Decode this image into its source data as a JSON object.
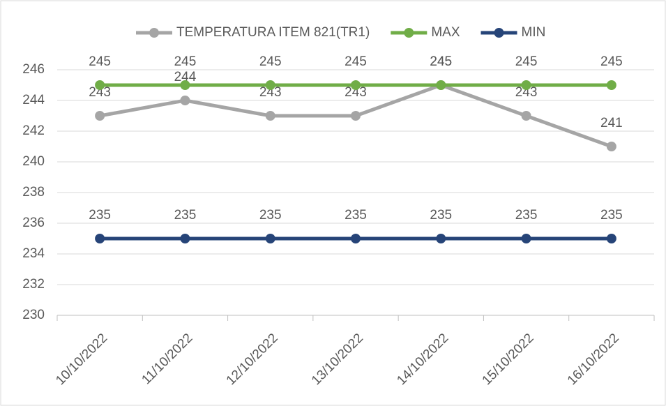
{
  "chart_data": {
    "type": "line",
    "categories": [
      "10/10/2022",
      "11/10/2022",
      "12/10/2022",
      "13/10/2022",
      "14/10/2022",
      "15/10/2022",
      "16/10/2022"
    ],
    "series": [
      {
        "name": "TEMPERATURA ITEM 821(TR1)",
        "color": "#a5a5a5",
        "values": [
          243,
          244,
          243,
          243,
          245,
          243,
          241
        ]
      },
      {
        "name": "MAX",
        "color": "#70ad47",
        "values": [
          245,
          245,
          245,
          245,
          245,
          245,
          245
        ]
      },
      {
        "name": "MIN",
        "color": "#264478",
        "values": [
          235,
          235,
          235,
          235,
          235,
          235,
          235
        ]
      }
    ],
    "ylim": [
      230,
      246
    ],
    "yticks": [
      230,
      232,
      234,
      236,
      238,
      240,
      242,
      244,
      246
    ],
    "grid": true,
    "legend": "top"
  }
}
